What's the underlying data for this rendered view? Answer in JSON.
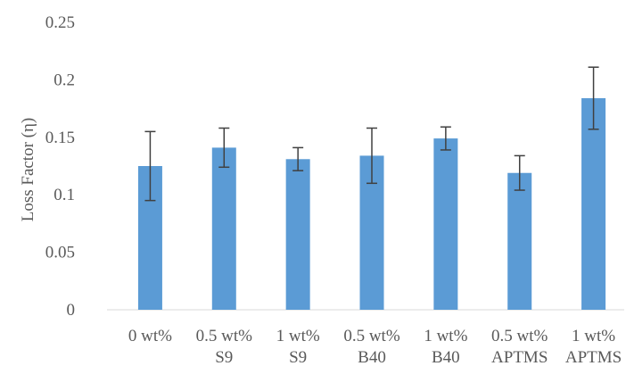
{
  "chart_data": {
    "type": "bar",
    "categories": [
      [
        "0 wt%"
      ],
      [
        "0.5 wt%",
        "S9"
      ],
      [
        "1 wt%",
        "S9"
      ],
      [
        "0.5 wt%",
        "B40"
      ],
      [
        "1 wt%",
        "B40"
      ],
      [
        "0.5 wt%",
        "APTMS"
      ],
      [
        "1 wt%",
        "APTMS"
      ]
    ],
    "values": [
      0.125,
      0.141,
      0.131,
      0.134,
      0.149,
      0.119,
      0.184
    ],
    "error": [
      0.03,
      0.017,
      0.01,
      0.024,
      0.01,
      0.015,
      0.027
    ],
    "ylabel": "Loss Factor (η)",
    "xlabel": "",
    "ylim": [
      0,
      0.25
    ],
    "yticks": [
      0,
      0.05,
      0.1,
      0.15,
      0.2,
      0.25
    ],
    "ytick_labels": [
      "0",
      "0.05",
      "0.1",
      "0.15",
      "0.2",
      "0.25"
    ],
    "grid": false,
    "colors": {
      "bar": "#5b9bd5",
      "error": "#404040",
      "axis": "#d9d9d9",
      "text": "#595959"
    }
  }
}
